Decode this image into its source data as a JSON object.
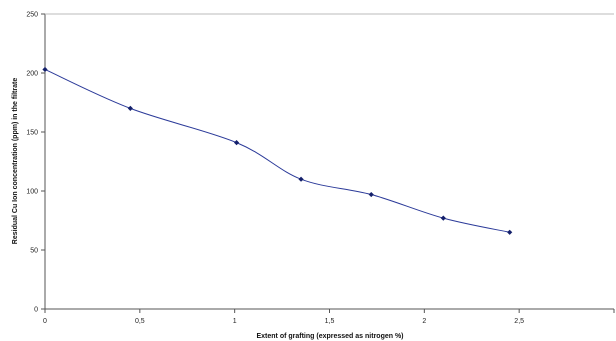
{
  "chart_data": {
    "type": "line",
    "xlabel": "Extent of grafting (expressed as nitrogen %)",
    "ylabel": "Residual Cu Ion concentration (ppm) in the filtrate",
    "xlim": [
      0,
      3
    ],
    "ylim": [
      0,
      250
    ],
    "x_ticks": [
      "0",
      "0,5",
      "1",
      "1,5",
      "2",
      "2,5"
    ],
    "y_ticks": [
      "0",
      "50",
      "100",
      "150",
      "200",
      "250"
    ],
    "grid": false,
    "legend": "none",
    "series": [
      {
        "x": [
          0,
          0.45,
          1.01,
          1.35,
          1.72,
          2.1,
          2.45
        ],
        "y": [
          203,
          170,
          141,
          110,
          97,
          77,
          65
        ],
        "color": "#2b3a99",
        "marker": "diamond"
      }
    ]
  }
}
